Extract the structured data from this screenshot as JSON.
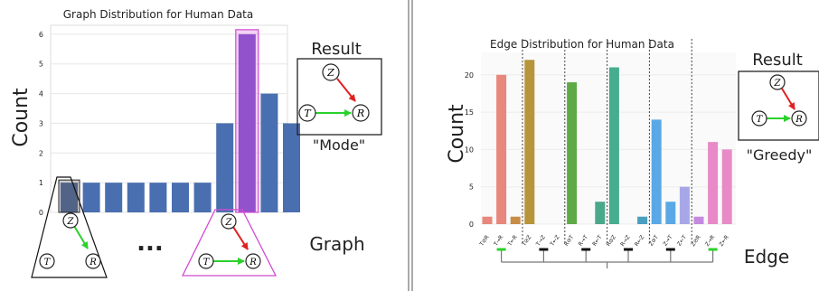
{
  "left_panel": {
    "title": "Graph Distribution for Human Data",
    "ylabel": "Count",
    "result_label": "Result",
    "mode_label": "\"Mode\"",
    "graph_label": "Graph",
    "ellipsis": "...",
    "highlight_color": "#d24bd2",
    "bar_color": "#4a6fb0"
  },
  "right_panel": {
    "title": "Edge Distribution for Human Data",
    "ylabel": "Count",
    "xlabel": "Edge",
    "result_label": "Result",
    "greedy_label": "\"Greedy\""
  },
  "nodes": {
    "t": "T",
    "r": "R",
    "z": "Z"
  },
  "chart_data": [
    {
      "type": "bar",
      "title": "Graph Distribution for Human Data",
      "ylabel": "Count",
      "ylim": [
        0,
        6.3
      ],
      "yticks": [
        0,
        1,
        2,
        3,
        4,
        5,
        6
      ],
      "values": [
        1,
        1,
        1,
        1,
        1,
        1,
        1,
        3,
        6,
        4,
        3
      ],
      "highlight": [
        0,
        8
      ],
      "grid": true
    },
    {
      "type": "bar",
      "title": "Edge Distribution for Human Data",
      "xlabel": "Edge",
      "ylabel": "Count",
      "ylim": [
        0,
        23
      ],
      "yticks": [
        0,
        5,
        10,
        15,
        20
      ],
      "categories": [
        "T⊘R",
        "T→R",
        "T←R",
        "T⊘Z",
        "T→Z",
        "T←Z",
        "R⊘T",
        "R→T",
        "R←T",
        "R⊘Z",
        "R→Z",
        "R←Z",
        "Z⊘T",
        "Z→T",
        "Z←T",
        "Z⊘R",
        "Z→R",
        "Z←R"
      ],
      "values": [
        1,
        20,
        1,
        22,
        0,
        0,
        19,
        0,
        3,
        21,
        0,
        1,
        14,
        3,
        5,
        1,
        11,
        10
      ],
      "colors": [
        "#e8877c",
        "#e8877c",
        "#c78d48",
        "#b8943a",
        "#b8943a",
        "#9aa040",
        "#5eaa46",
        "#5eaa46",
        "#4aa88a",
        "#47ad8f",
        "#47ad8f",
        "#4a9fc0",
        "#5aa9e6",
        "#5aa9e6",
        "#a7a7e8",
        "#c58ae0",
        "#e88ac7",
        "#e88ac7"
      ],
      "grid": true
    }
  ]
}
